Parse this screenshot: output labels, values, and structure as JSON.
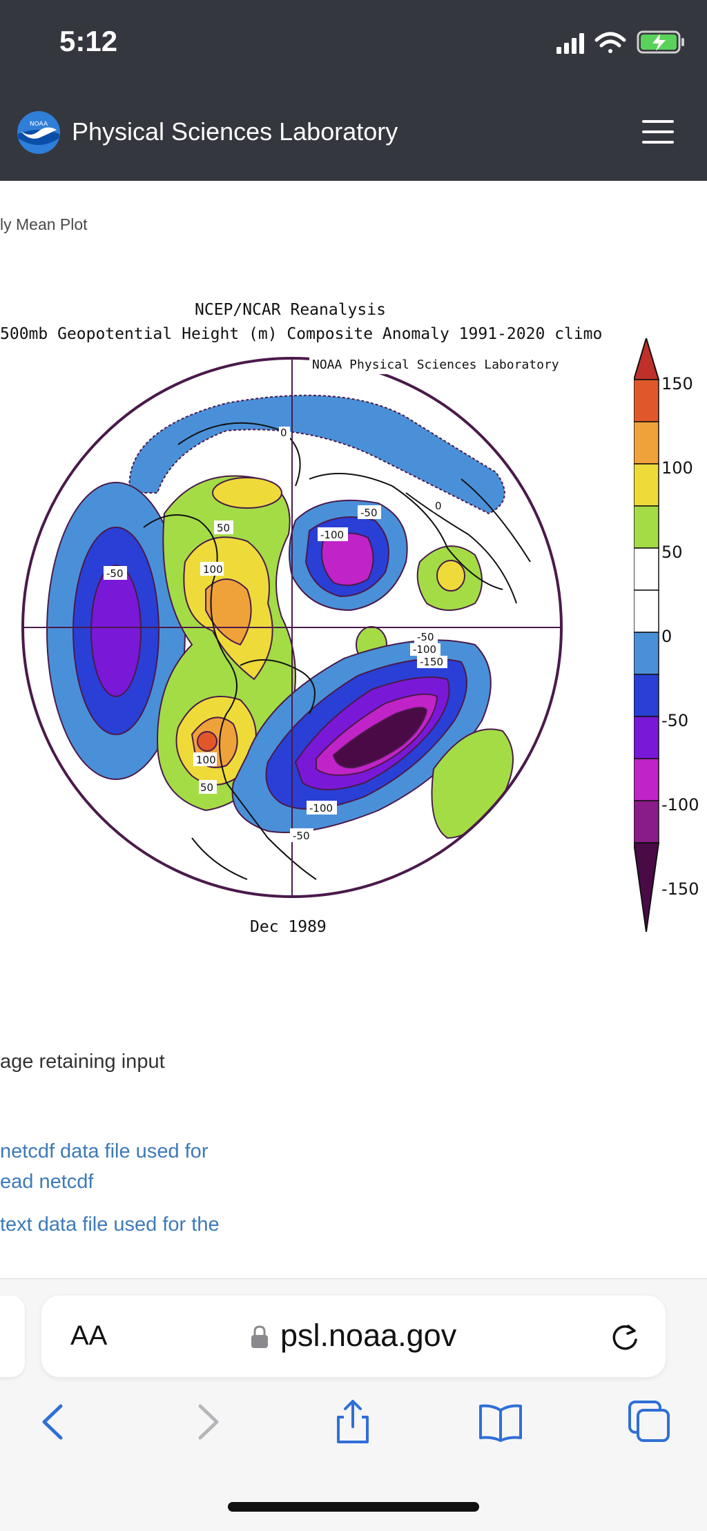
{
  "status_bar": {
    "time": "5:12"
  },
  "header": {
    "site_title": "Physical Sciences Laboratory",
    "logo_text": "NOAA"
  },
  "breadcrumb": "ly Mean Plot",
  "plot": {
    "title_line1": "NCEP/NCAR Reanalysis",
    "title_line2": "500mb Geopotential Height (m) Composite Anomaly 1991-2020 climo",
    "credit": "NOAA Physical Sciences Laboratory",
    "date_label": "Dec 1989",
    "contour_labels": [
      "-50",
      "50",
      "100",
      "-100",
      "-50",
      "-50",
      "-100",
      "-150",
      "0",
      "0",
      "-100",
      "-50",
      "100",
      "50"
    ],
    "colorbar_ticks": [
      "150",
      "100",
      "50",
      "0",
      "-50",
      "-100",
      "-150"
    ],
    "colors": {
      "neg_light": "#4a90d8",
      "neg_mid": "#2a3fd6",
      "neg_strong": "#7a18d8",
      "neg_stronger": "#c023c8",
      "neg_max": "#4a0a46",
      "pos_light": "#a4dc46",
      "pos_mid": "#eedb3a",
      "pos_strong": "#f0a23a",
      "pos_max": "#e0582a",
      "outline": "#4a1a4a"
    }
  },
  "text": {
    "line1": "age retaining input",
    "link1_a": " netcdf data file used for",
    "link1_b": "ead netcdf",
    "link2": " text data file used for the"
  },
  "browser": {
    "aa_label": "AA",
    "url": "psl.noaa.gov"
  }
}
